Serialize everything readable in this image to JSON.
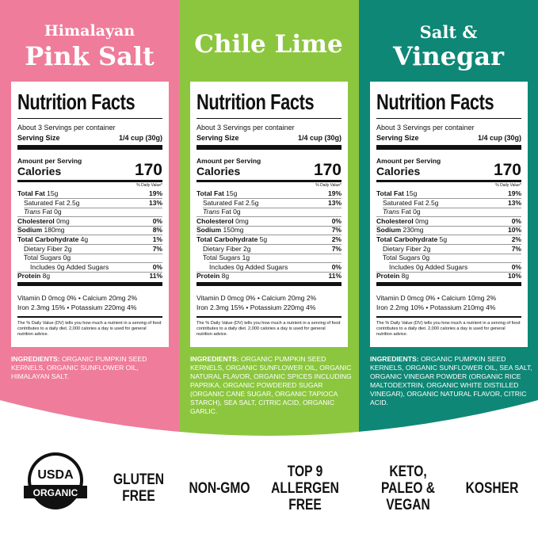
{
  "panels": [
    {
      "title": [
        "Himalayan",
        "Pink Salt"
      ],
      "label": {
        "heading": "Nutrition Facts",
        "servings": "About 3 Servings per container",
        "serving_size_label": "Serving Size",
        "serving_size_value": "1/4 cup (30g)",
        "amount_per_serving": "Amount per Serving",
        "calories_label": "Calories",
        "calories_value": "170",
        "daily_value_header": "% Daily Value*",
        "rows": [
          {
            "name": "Total Fat",
            "amount": "15g",
            "dv": "19%"
          },
          {
            "name": "Saturated Fat",
            "amount": "2.5g",
            "dv": "13%"
          },
          {
            "name": "Trans",
            "amount": "Fat 0g"
          },
          {
            "name": "Cholesterol",
            "amount": "0mg",
            "dv": "0%"
          },
          {
            "name": "Sodium",
            "amount": "180mg",
            "dv": "8%"
          },
          {
            "name": "Total Carbohydrate",
            "amount": "4g",
            "dv": "1%"
          },
          {
            "name": "Dietary Fiber",
            "amount": "2g",
            "dv": "7%"
          },
          {
            "name": "Total Sugars",
            "amount": "0g"
          },
          {
            "name": "Includes 0g Added Sugars",
            "dv": "0%"
          },
          {
            "name": "Protein",
            "amount": "8g",
            "dv": "11%"
          }
        ],
        "vitamins": [
          "Vitamin D 0mcg 0% • Calcium 20mg 2%",
          "Iron 2.3mg 15% • Potassium 220mg 4%"
        ],
        "footnote": "The % Daily Value (DV) tells you how much a nutrient in a serving of food contributes to a daily diet. 2,000 calories a day is used for general nutrition advice."
      },
      "ingredients_label": "INGREDIENTS:",
      "ingredients": "ORGANIC PUMPKIN SEED KERNELS, ORGANIC SUNFLOWER OIL, HIMALAYAN SALT."
    },
    {
      "title": [
        "Chile Lime"
      ],
      "label": {
        "heading": "Nutrition Facts",
        "servings": "About 3 Servings per container",
        "serving_size_label": "Serving Size",
        "serving_size_value": "1/4 cup (30g)",
        "amount_per_serving": "Amount per Serving",
        "calories_label": "Calories",
        "calories_value": "170",
        "daily_value_header": "% Daily Value*",
        "rows": [
          {
            "name": "Total Fat",
            "amount": "15g",
            "dv": "19%"
          },
          {
            "name": "Saturated Fat",
            "amount": "2.5g",
            "dv": "13%"
          },
          {
            "name": "Trans",
            "amount": "Fat 0g"
          },
          {
            "name": "Cholesterol",
            "amount": "0mg",
            "dv": "0%"
          },
          {
            "name": "Sodium",
            "amount": "150mg",
            "dv": "7%"
          },
          {
            "name": "Total Carbohydrate",
            "amount": "5g",
            "dv": "2%"
          },
          {
            "name": "Dietary Fiber",
            "amount": "2g",
            "dv": "7%"
          },
          {
            "name": "Total Sugars",
            "amount": "1g"
          },
          {
            "name": "Includes 0g Added Sugars",
            "dv": "0%"
          },
          {
            "name": "Protein",
            "amount": "8g",
            "dv": "11%"
          }
        ],
        "vitamins": [
          "Vitamin D 0mcg 0% • Calcium 20mg 2%",
          "Iron 2.3mg 15% • Potassium 220mg 4%"
        ],
        "footnote": "The % Daily Value (DV) tells you how much a nutrient in a serving of food contributes to a daily diet. 2,000 calories a day is used for general nutrition advice."
      },
      "ingredients_label": "INGREDIENTS:",
      "ingredients": "ORGANIC PUMPKIN SEED KERNELS, ORGANIC SUNFLOWER OIL, ORGANIC NATURAL FLAVOR, ORGANIC SPICES INCLUDING PAPRIKA, ORGANIC POWDERED SUGAR (ORGANIC CANE SUGAR, ORGANIC TAPIOCA STARCH), SEA SALT, CITRIC ACID, ORGANIC GARLIC."
    },
    {
      "title": [
        "Salt &",
        "Vinegar"
      ],
      "label": {
        "heading": "Nutrition Facts",
        "servings": "About 3 Servings per container",
        "serving_size_label": "Serving Size",
        "serving_size_value": "1/4 cup (30g)",
        "amount_per_serving": "Amount per Serving",
        "calories_label": "Calories",
        "calories_value": "170",
        "daily_value_header": "% Daily Value*",
        "rows": [
          {
            "name": "Total Fat",
            "amount": "15g",
            "dv": "19%"
          },
          {
            "name": "Saturated Fat",
            "amount": "2.5g",
            "dv": "13%"
          },
          {
            "name": "Trans",
            "amount": "Fat 0g"
          },
          {
            "name": "Cholesterol",
            "amount": "0mg",
            "dv": "0%"
          },
          {
            "name": "Sodium",
            "amount": "230mg",
            "dv": "10%"
          },
          {
            "name": "Total Carbohydrate",
            "amount": "5g",
            "dv": "2%"
          },
          {
            "name": "Dietary Fiber",
            "amount": "2g",
            "dv": "7%"
          },
          {
            "name": "Total Sugars",
            "amount": "0g"
          },
          {
            "name": "Includes 0g Added Sugars",
            "dv": "0%"
          },
          {
            "name": "Protein",
            "amount": "8g",
            "dv": "10%"
          }
        ],
        "vitamins": [
          "Vitamin D 0mcg 0% • Calcium 10mg 2%",
          "Iron 2.2mg 10% • Potassium 210mg 4%"
        ],
        "footnote": "The % Daily Value (DV) tells you how much a nutrient in a serving of food contributes to a daily diet. 2,000 calories a day is used for general nutrition advice."
      },
      "ingredients_label": "INGREDIENTS:",
      "ingredients": "ORGANIC PUMPKIN SEED KERNELS, ORGANIC SUNFLOWER OIL, SEA SALT, ORGANIC VINEGAR POWDER (ORGANIC RICE MALTODEXTRIN, ORGANIC WHITE DISTILLED VINEGAR), ORGANIC NATURAL FLAVOR, CITRIC ACID."
    }
  ],
  "badges": {
    "usda": [
      "USDA",
      "ORGANIC"
    ],
    "items": [
      [
        "GLUTEN",
        "FREE"
      ],
      [
        "NON-GMO"
      ],
      [
        "TOP 9",
        "ALLERGEN",
        "FREE"
      ],
      [
        "KETO,",
        "PALEO &",
        "VEGAN"
      ],
      [
        "KOSHER"
      ]
    ]
  }
}
